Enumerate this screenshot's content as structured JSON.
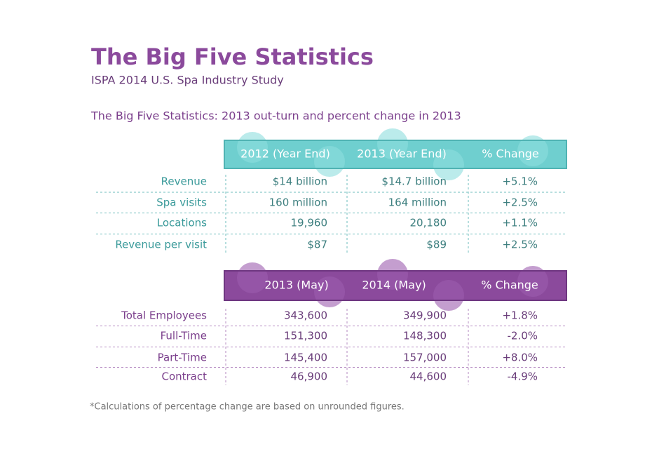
{
  "header": {
    "title": "The Big Five Statistics",
    "subtitle": "ISPA 2014 U.S. Spa Industry Study"
  },
  "caption": "The Big Five Statistics: 2013 out-turn and percent change in 2013",
  "tables": [
    {
      "columns": [
        "2012 (Year End)",
        "2013 (Year End)",
        "% Change"
      ],
      "rows": [
        [
          "Revenue",
          "$14 billion",
          "$14.7 billion",
          "+5.1%"
        ],
        [
          "Spa visits",
          "160 million",
          "164 million",
          "+2.5%"
        ],
        [
          "Locations",
          "19,960",
          "20,180",
          "+1.1%"
        ],
        [
          "Revenue per visit",
          "$87",
          "$89",
          "+2.5%"
        ]
      ]
    },
    {
      "columns": [
        "2013 (May)",
        "2014 (May)",
        "% Change"
      ],
      "rows": [
        [
          "Total Employees",
          "343,600",
          "349,900",
          "+1.8%"
        ],
        [
          "Full-Time",
          "151,300",
          "148,300",
          "-2.0%"
        ],
        [
          "Part-Time",
          "145,400",
          "157,000",
          "+8.0%"
        ],
        [
          "Contract",
          "46,900",
          "44,600",
          "-4.9%"
        ]
      ]
    }
  ],
  "footnote": "*Calculations of percentage change are based on unrounded figures."
}
